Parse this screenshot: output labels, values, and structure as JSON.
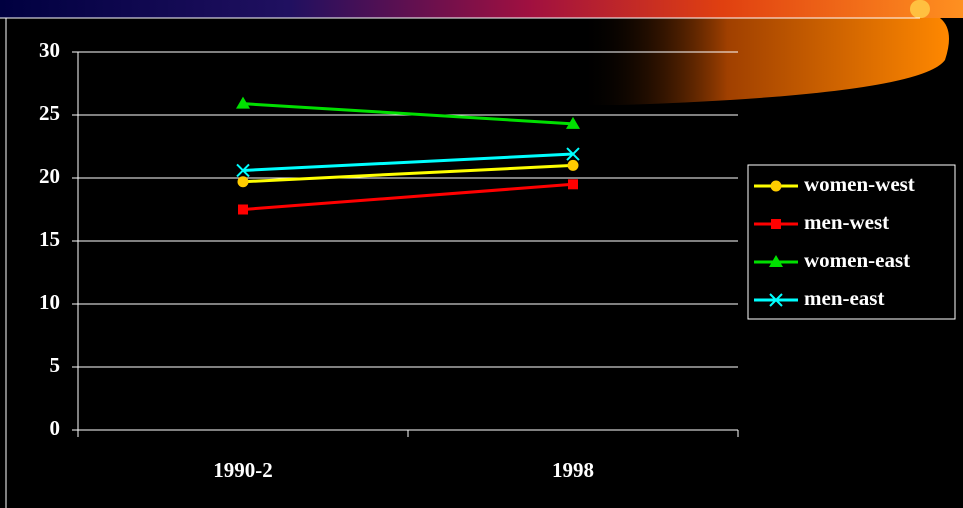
{
  "chart_data": {
    "type": "line",
    "categories": [
      "1990-2",
      "1998"
    ],
    "series": [
      {
        "name": "women-west",
        "color": "#ffff00",
        "marker": "circle",
        "marker_color": "#ffcc00",
        "values": [
          19.7,
          21.0
        ]
      },
      {
        "name": "men-west",
        "color": "#ff0000",
        "marker": "square",
        "marker_color": "#ff0000",
        "values": [
          17.5,
          19.5
        ]
      },
      {
        "name": "women-east",
        "color": "#00e000",
        "marker": "triangle",
        "marker_color": "#00e000",
        "values": [
          25.9,
          24.3
        ]
      },
      {
        "name": "men-east",
        "color": "#00ffff",
        "marker": "x",
        "marker_color": "#00ffff",
        "values": [
          20.6,
          21.9
        ]
      }
    ],
    "ylim": [
      0,
      30
    ],
    "yticks": [
      0,
      5,
      10,
      15,
      20,
      25,
      30
    ],
    "grid": true,
    "legend": "right"
  }
}
